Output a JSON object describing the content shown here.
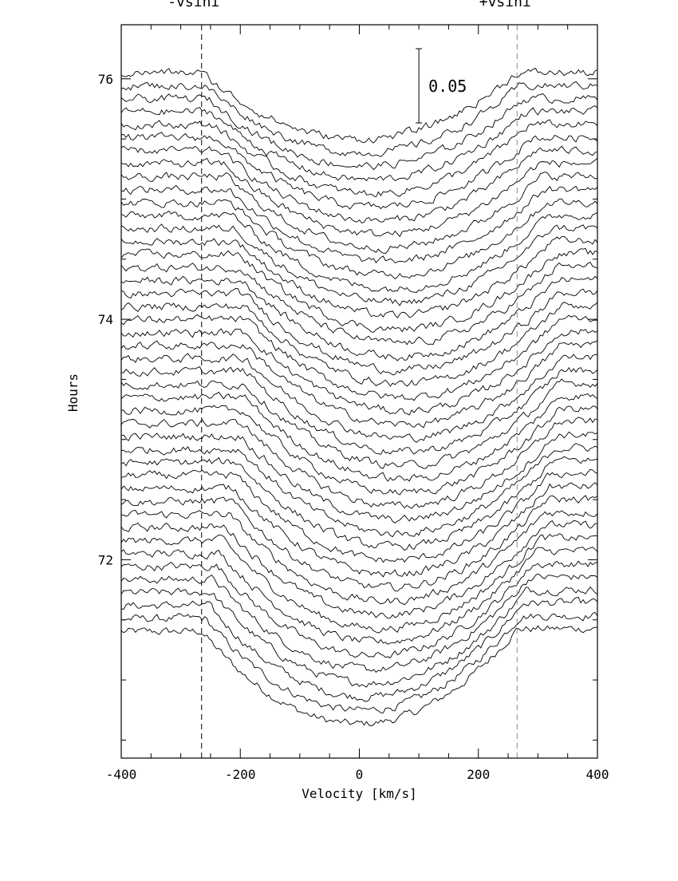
{
  "chart_data": {
    "type": "line",
    "title": "",
    "xlabel": "Velocity [km/s]",
    "ylabel": "Hours",
    "xlim": [
      -400,
      400
    ],
    "ylim": [
      70.35,
      76.45
    ],
    "x_ticks": [
      -400,
      -200,
      0,
      200,
      400
    ],
    "x_tick_labels": [
      "-400",
      "-200",
      "0",
      "200",
      "400"
    ],
    "y_ticks": [
      72,
      74,
      76
    ],
    "y_tick_labels": [
      "72",
      "74",
      "76"
    ],
    "grid": false,
    "legend": "none",
    "annotations": {
      "vsini_left_label": "-vsini",
      "vsini_right_label": "+vsini",
      "vsini_values": [
        -265,
        265
      ],
      "scale_bar_label": "0.05",
      "scale_bar_amount": 0.05,
      "scale_bar_x": 100
    },
    "series_description": {
      "profile_count": 44,
      "time_start_hours": 71.4,
      "time_end_hours": 76.05,
      "continuum_offset": "profile drawn at its observation time (Hours)",
      "line_depth_hours": [
        0.55,
        0.78
      ],
      "line_centre_kms": [
        0,
        75
      ],
      "line_half_width_kms": 265
    }
  }
}
